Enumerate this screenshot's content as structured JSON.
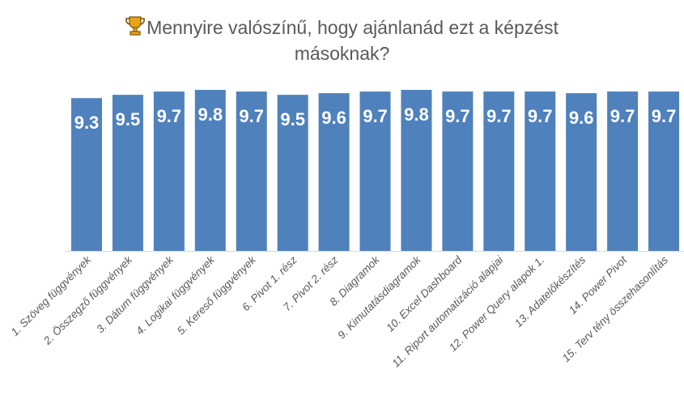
{
  "chart_data": {
    "type": "bar",
    "title_line1": "Mennyire valószínű, hogy ajánlanád ezt a képzést",
    "title_line2": "másoknak?",
    "title_icon": "trophy-icon",
    "categories": [
      "1. Szöveg függvények",
      "2. Összegző függvények",
      "3. Dátum függvények",
      "4. Logikai függvények",
      "5. Kereső függvények",
      "6. Pivot 1. rész",
      "7. Pivot 2. rész",
      "8. Diagramok",
      "9. Kimutatásdiagramok",
      "10. Excel Dashboard",
      "11. Riport automatizáció alapjai",
      "12. Power Query alapok 1.",
      "13. Adatelőkészítés",
      "14. Power Pivot",
      "15. Terv tény összehasonlítás"
    ],
    "values": [
      9.3,
      9.5,
      9.7,
      9.8,
      9.7,
      9.5,
      9.6,
      9.7,
      9.8,
      9.7,
      9.7,
      9.7,
      9.6,
      9.7,
      9.7
    ],
    "xlabel": "",
    "ylabel": "",
    "ylim": [
      0,
      10
    ],
    "grid": false,
    "legend": "none",
    "bar_color": "#4f81bd",
    "label_color": "#ffffff"
  }
}
